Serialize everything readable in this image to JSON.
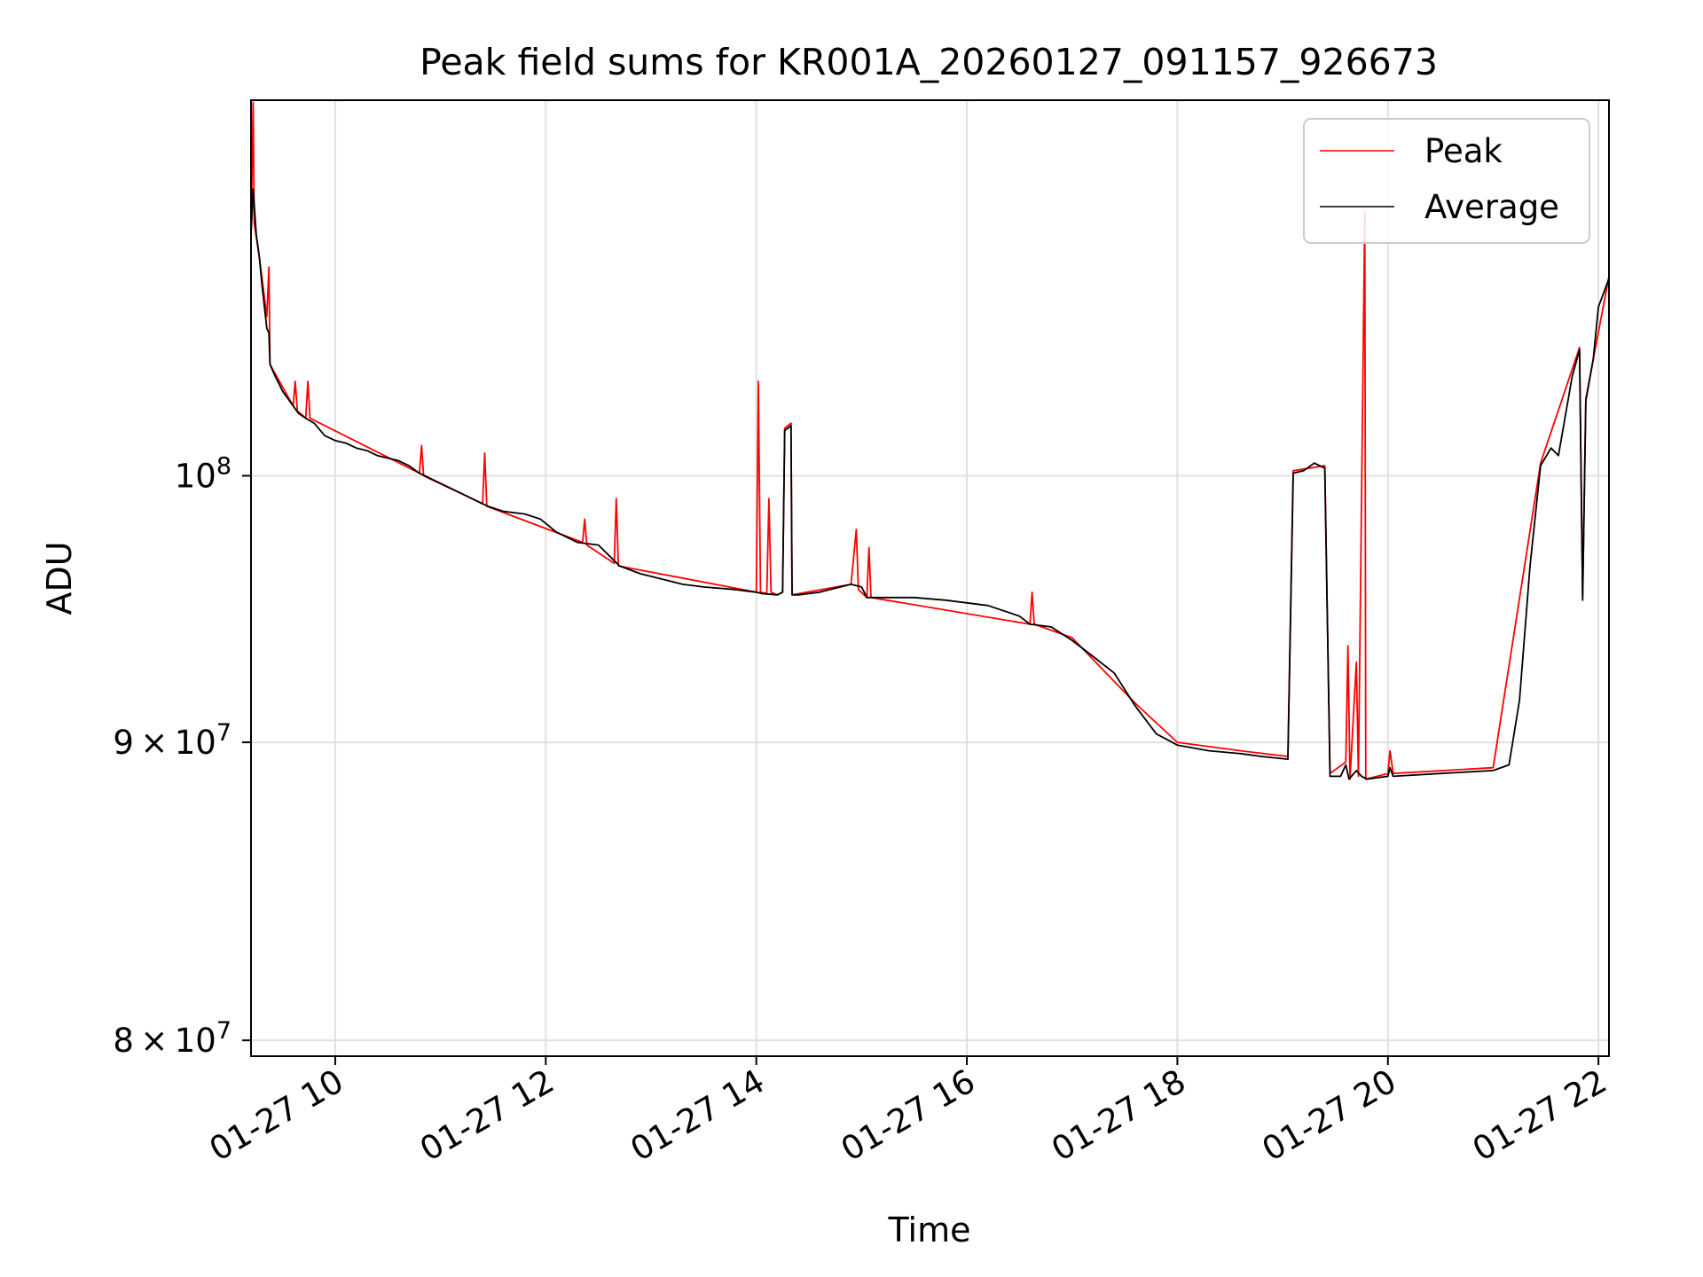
{
  "chart_data": {
    "type": "line",
    "title": "Peak field sums for KR001A_20260127_091157_926673",
    "xlabel": "Time",
    "ylabel": "ADU",
    "yscale": "log",
    "grid": true,
    "xlim": [
      9.2,
      22.1
    ],
    "ylim": [
      79500000,
      116000000
    ],
    "x_ticks": [
      {
        "value": 10,
        "label": "01-27 10"
      },
      {
        "value": 12,
        "label": "01-27 12"
      },
      {
        "value": 14,
        "label": "01-27 14"
      },
      {
        "value": 16,
        "label": "01-27 16"
      },
      {
        "value": 18,
        "label": "01-27 18"
      },
      {
        "value": 20,
        "label": "01-27 20"
      },
      {
        "value": 22,
        "label": "01-27 22"
      }
    ],
    "y_ticks": [
      {
        "value": 80000000,
        "mant": "8",
        "exp": "7"
      },
      {
        "value": 90000000,
        "mant": "9",
        "exp": "7"
      },
      {
        "value": 100000000,
        "mant": "",
        "exp": "8"
      }
    ],
    "legend": {
      "position": "top-right",
      "entries": [
        {
          "name": "Peak",
          "color": "#ff0000"
        },
        {
          "name": "Average",
          "color": "#000000"
        }
      ]
    },
    "series": [
      {
        "name": "Average",
        "color": "#000000",
        "points": [
          [
            9.2,
            110000000
          ],
          [
            9.22,
            112000000
          ],
          [
            9.25,
            110000000
          ],
          [
            9.28,
            109000000
          ],
          [
            9.3,
            108000000
          ],
          [
            9.35,
            106000000
          ],
          [
            9.37,
            105800000
          ],
          [
            9.38,
            104500000
          ],
          [
            9.42,
            104100000
          ],
          [
            9.5,
            103400000
          ],
          [
            9.6,
            102800000
          ],
          [
            9.65,
            102500000
          ],
          [
            9.72,
            102300000
          ],
          [
            9.8,
            102100000
          ],
          [
            9.9,
            101600000
          ],
          [
            10.0,
            101400000
          ],
          [
            10.1,
            101300000
          ],
          [
            10.2,
            101100000
          ],
          [
            10.3,
            101000000
          ],
          [
            10.4,
            100800000
          ],
          [
            10.5,
            100700000
          ],
          [
            10.6,
            100600000
          ],
          [
            10.7,
            100400000
          ],
          [
            10.8,
            100100000
          ],
          [
            10.9,
            99900000
          ],
          [
            11.0,
            99700000
          ],
          [
            11.1,
            99500000
          ],
          [
            11.2,
            99300000
          ],
          [
            11.3,
            99100000
          ],
          [
            11.45,
            98800000
          ],
          [
            11.6,
            98600000
          ],
          [
            11.8,
            98500000
          ],
          [
            11.95,
            98300000
          ],
          [
            12.1,
            97800000
          ],
          [
            12.3,
            97400000
          ],
          [
            12.5,
            97300000
          ],
          [
            12.6,
            96900000
          ],
          [
            12.7,
            96500000
          ],
          [
            12.9,
            96200000
          ],
          [
            13.1,
            96000000
          ],
          [
            13.3,
            95800000
          ],
          [
            13.5,
            95700000
          ],
          [
            13.8,
            95600000
          ],
          [
            14.0,
            95500000
          ],
          [
            14.05,
            95450000
          ],
          [
            14.2,
            95400000
          ],
          [
            14.25,
            95500000
          ],
          [
            14.27,
            101800000
          ],
          [
            14.33,
            102000000
          ],
          [
            14.34,
            95400000
          ],
          [
            14.4,
            95400000
          ],
          [
            14.6,
            95500000
          ],
          [
            14.9,
            95800000
          ],
          [
            15.0,
            95700000
          ],
          [
            15.05,
            95300000
          ],
          [
            15.3,
            95300000
          ],
          [
            15.5,
            95300000
          ],
          [
            15.8,
            95200000
          ],
          [
            16.0,
            95100000
          ],
          [
            16.2,
            95000000
          ],
          [
            16.5,
            94600000
          ],
          [
            16.6,
            94300000
          ],
          [
            16.8,
            94200000
          ],
          [
            17.0,
            93700000
          ],
          [
            17.2,
            93100000
          ],
          [
            17.4,
            92500000
          ],
          [
            17.6,
            91300000
          ],
          [
            17.8,
            90300000
          ],
          [
            18.0,
            89900000
          ],
          [
            18.3,
            89700000
          ],
          [
            18.6,
            89600000
          ],
          [
            18.8,
            89500000
          ],
          [
            19.05,
            89400000
          ],
          [
            19.1,
            100100000
          ],
          [
            19.2,
            100200000
          ],
          [
            19.3,
            100500000
          ],
          [
            19.4,
            100300000
          ],
          [
            19.45,
            88800000
          ],
          [
            19.55,
            88800000
          ],
          [
            19.6,
            89200000
          ],
          [
            19.63,
            88700000
          ],
          [
            19.7,
            89000000
          ],
          [
            19.75,
            88800000
          ],
          [
            19.8,
            88700000
          ],
          [
            20.0,
            88800000
          ],
          [
            20.02,
            89100000
          ],
          [
            20.05,
            88800000
          ],
          [
            20.5,
            88900000
          ],
          [
            21.0,
            89000000
          ],
          [
            21.15,
            89200000
          ],
          [
            21.25,
            91500000
          ],
          [
            21.35,
            96500000
          ],
          [
            21.45,
            100400000
          ],
          [
            21.55,
            101100000
          ],
          [
            21.62,
            100800000
          ],
          [
            21.75,
            104000000
          ],
          [
            21.82,
            105100000
          ],
          [
            21.85,
            95200000
          ],
          [
            21.88,
            103000000
          ],
          [
            21.95,
            104700000
          ],
          [
            22.0,
            106900000
          ],
          [
            22.1,
            108100000
          ]
        ]
      },
      {
        "name": "Peak",
        "color": "#ff0000",
        "points": [
          [
            9.2,
            110000000
          ],
          [
            9.22,
            115900000
          ],
          [
            9.23,
            110500000
          ],
          [
            9.28,
            109000000
          ],
          [
            9.35,
            106500000
          ],
          [
            9.37,
            108600000
          ],
          [
            9.38,
            104500000
          ],
          [
            9.6,
            102800000
          ],
          [
            9.62,
            103800000
          ],
          [
            9.64,
            102600000
          ],
          [
            9.72,
            102300000
          ],
          [
            9.74,
            103800000
          ],
          [
            9.76,
            102300000
          ],
          [
            10.8,
            100100000
          ],
          [
            10.82,
            101200000
          ],
          [
            10.84,
            100000000
          ],
          [
            11.4,
            98900000
          ],
          [
            11.42,
            100900000
          ],
          [
            11.44,
            98800000
          ],
          [
            12.35,
            97400000
          ],
          [
            12.37,
            98300000
          ],
          [
            12.39,
            97300000
          ],
          [
            12.65,
            96600000
          ],
          [
            12.67,
            99100000
          ],
          [
            12.69,
            96500000
          ],
          [
            14.0,
            95500000
          ],
          [
            14.02,
            103800000
          ],
          [
            14.04,
            95500000
          ],
          [
            14.1,
            95450000
          ],
          [
            14.12,
            99100000
          ],
          [
            14.14,
            95500000
          ],
          [
            14.2,
            95400000
          ],
          [
            14.25,
            95500000
          ],
          [
            14.27,
            101900000
          ],
          [
            14.33,
            102100000
          ],
          [
            14.34,
            95400000
          ],
          [
            14.9,
            95800000
          ],
          [
            14.95,
            97900000
          ],
          [
            14.97,
            95600000
          ],
          [
            15.05,
            95300000
          ],
          [
            15.07,
            97200000
          ],
          [
            15.09,
            95300000
          ],
          [
            16.6,
            94300000
          ],
          [
            16.62,
            95500000
          ],
          [
            16.64,
            94300000
          ],
          [
            17.0,
            93800000
          ],
          [
            17.6,
            91400000
          ],
          [
            18.0,
            90000000
          ],
          [
            18.6,
            89700000
          ],
          [
            19.05,
            89500000
          ],
          [
            19.1,
            100200000
          ],
          [
            19.4,
            100400000
          ],
          [
            19.45,
            88900000
          ],
          [
            19.6,
            89300000
          ],
          [
            19.62,
            93500000
          ],
          [
            19.64,
            88700000
          ],
          [
            19.7,
            92900000
          ],
          [
            19.72,
            88800000
          ],
          [
            19.78,
            111000000
          ],
          [
            19.79,
            88700000
          ],
          [
            20.0,
            88900000
          ],
          [
            20.02,
            89700000
          ],
          [
            20.05,
            88900000
          ],
          [
            21.0,
            89100000
          ],
          [
            21.45,
            100500000
          ],
          [
            21.82,
            105200000
          ],
          [
            21.85,
            95300000
          ],
          [
            21.88,
            103100000
          ],
          [
            22.1,
            108200000
          ]
        ]
      }
    ]
  }
}
